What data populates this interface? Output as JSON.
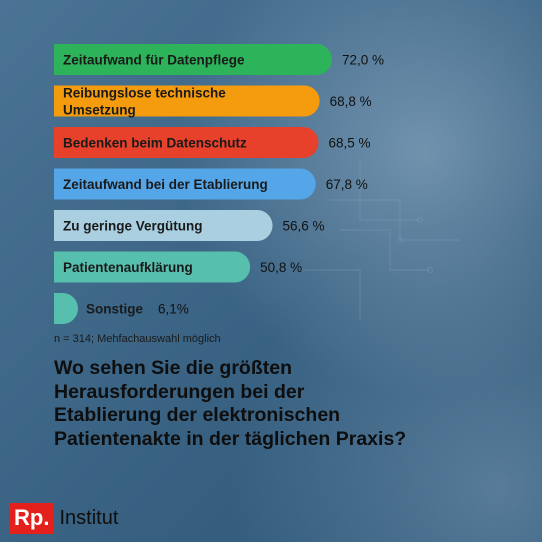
{
  "chart_data": {
    "type": "bar",
    "orientation": "horizontal",
    "categories": [
      "Zeitaufwand für Datenpflege",
      "Reibungslose technische Umsetzung",
      "Bedenken beim Datenschutz",
      "Zeitaufwand bei der Etablierung",
      "Zu geringe Vergütung",
      "Patientenaufklärung",
      "Sonstige"
    ],
    "values": [
      72.0,
      68.8,
      68.5,
      67.8,
      56.6,
      50.8,
      6.1
    ],
    "value_labels": [
      "72,0 %",
      "68,8 %",
      "68,5 %",
      "67,8 %",
      "56,6 %",
      "50,8 %",
      "6,1%"
    ],
    "colors": [
      "#2db35a",
      "#f49b0e",
      "#e8412b",
      "#55a6e8",
      "#a9cfe0",
      "#56bfae",
      "#56bfae"
    ],
    "title": "Wo sehen Sie die größten Herausforderungen bei der Etablierung der elektronischen Patientenakte in der täglichen Praxis?",
    "note": "n = 314; Mehfachauswahl möglich"
  },
  "label_lines": [
    [
      "Zeitaufwand für Datenpflege"
    ],
    [
      "Reibungslose technische",
      "Umsetzung"
    ],
    [
      "Bedenken beim Datenschutz"
    ],
    [
      "Zeitaufwand bei der Etablierung"
    ],
    [
      "Zu geringe Vergütung"
    ],
    [
      "Patientenaufklärung"
    ],
    [
      "Sonstige"
    ]
  ],
  "brand": {
    "logo": "Rp.",
    "name": "Institut",
    "logo_color": "#e3201b"
  }
}
